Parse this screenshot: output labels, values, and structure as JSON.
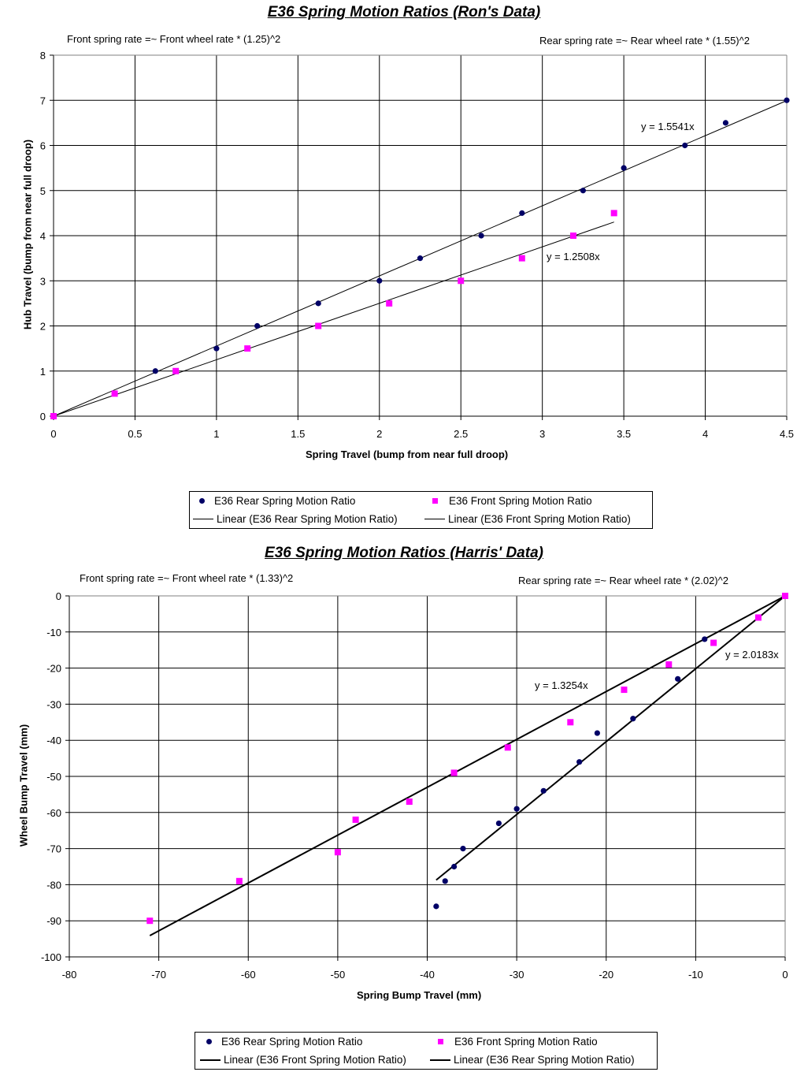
{
  "chart_data": [
    {
      "type": "scatter",
      "title": "E36 Spring Motion Ratios (Ron's Data)",
      "notes": {
        "left": "Front spring rate =~ Front wheel rate * (1.25)^2",
        "right": "Rear spring rate =~ Rear wheel rate * (1.55)^2"
      },
      "xlabel": "Spring Travel (bump from near full droop)",
      "ylabel": "Hub Travel (bump from near full droop)",
      "xlim": [
        0,
        4.5
      ],
      "ylim": [
        0,
        8
      ],
      "x_ticks": [
        "0",
        "0.5",
        "1",
        "1.5",
        "2",
        "2.5",
        "3",
        "3.5",
        "4",
        "4.5"
      ],
      "y_ticks": [
        "0",
        "1",
        "2",
        "3",
        "4",
        "5",
        "6",
        "7",
        "8"
      ],
      "grid": true,
      "legend_position": "bottom",
      "series": [
        {
          "name": "E36 Rear Spring Motion Ratio",
          "marker": "circle",
          "color": "#000066",
          "x": [
            0,
            0.625,
            1.0,
            1.25,
            1.625,
            2.0,
            2.25,
            2.625,
            2.875,
            3.25,
            3.5,
            3.875,
            4.125,
            4.5
          ],
          "y": [
            0,
            1,
            1.5,
            2,
            2.5,
            3,
            3.5,
            4,
            4.5,
            5,
            5.5,
            6,
            6.5,
            7
          ]
        },
        {
          "name": "E36 Front Spring Motion Ratio",
          "marker": "square",
          "color": "#ff00ff",
          "x": [
            0,
            0.375,
            0.75,
            1.19,
            1.625,
            2.06,
            2.5,
            2.875,
            3.19,
            3.44
          ],
          "y": [
            0,
            0.5,
            1,
            1.5,
            2,
            2.5,
            3,
            3.5,
            4,
            4.5
          ]
        }
      ],
      "trendlines": [
        {
          "name": "Linear (E36 Rear Spring Motion Ratio)",
          "slope": 1.5541,
          "x_range": [
            0,
            4.5
          ],
          "equation": "y = 1.5541x"
        },
        {
          "name": "Linear (E36 Front Spring Motion Ratio)",
          "slope": 1.2508,
          "x_range": [
            0,
            3.44
          ],
          "equation": "y = 1.2508x"
        }
      ],
      "legend": [
        "E36 Rear Spring Motion Ratio",
        "E36 Front Spring Motion Ratio",
        "Linear (E36 Rear Spring Motion Ratio)",
        "Linear (E36 Front Spring Motion Ratio)"
      ]
    },
    {
      "type": "scatter",
      "title": "E36 Spring Motion Ratios (Harris' Data)",
      "notes": {
        "left": "Front spring rate =~ Front wheel rate * (1.33)^2",
        "right": "Rear spring rate =~ Rear wheel rate * (2.02)^2"
      },
      "xlabel": "Spring Bump Travel (mm)",
      "ylabel": "Wheel Bump Travel (mm)",
      "xlim": [
        -80,
        0
      ],
      "ylim": [
        -100,
        0
      ],
      "x_ticks": [
        "-80",
        "-70",
        "-60",
        "-50",
        "-40",
        "-30",
        "-20",
        "-10",
        "0"
      ],
      "y_ticks": [
        "0",
        "-10",
        "-20",
        "-30",
        "-40",
        "-50",
        "-60",
        "-70",
        "-80",
        "-90",
        "-100"
      ],
      "grid": true,
      "legend_position": "bottom",
      "series": [
        {
          "name": "E36 Rear Spring Motion Ratio",
          "marker": "circle",
          "color": "#000066",
          "x": [
            -9,
            -12,
            -17,
            -21,
            -23,
            -27,
            -30,
            -32,
            -36,
            -37,
            -38,
            -39
          ],
          "y": [
            -12,
            -23,
            -34,
            -38,
            -46,
            -54,
            -59,
            -63,
            -70,
            -75,
            -79,
            -86
          ]
        },
        {
          "name": "E36 Front Spring Motion Ratio",
          "marker": "square",
          "color": "#ff00ff",
          "x": [
            0,
            -3,
            -8,
            -13,
            -18,
            -24,
            -31,
            -37,
            -42,
            -48,
            -50,
            -61,
            -71
          ],
          "y": [
            0,
            -6,
            -13,
            -19,
            -26,
            -35,
            -42,
            -49,
            -57,
            -62,
            -71,
            -79,
            -90
          ]
        }
      ],
      "trendlines": [
        {
          "name": "Linear (E36 Front Spring Motion Ratio)",
          "slope": 1.3254,
          "x_range": [
            -71,
            0
          ],
          "equation": "y = 1.3254x"
        },
        {
          "name": "Linear (E36 Rear Spring Motion Ratio)",
          "slope": 2.0183,
          "x_range": [
            -39,
            0
          ],
          "equation": "y = 2.0183x"
        }
      ],
      "legend": [
        "E36 Rear Spring Motion Ratio",
        "E36 Front Spring Motion Ratio",
        "Linear (E36 Front Spring Motion Ratio)",
        "Linear (E36 Rear Spring Motion Ratio)"
      ]
    }
  ]
}
